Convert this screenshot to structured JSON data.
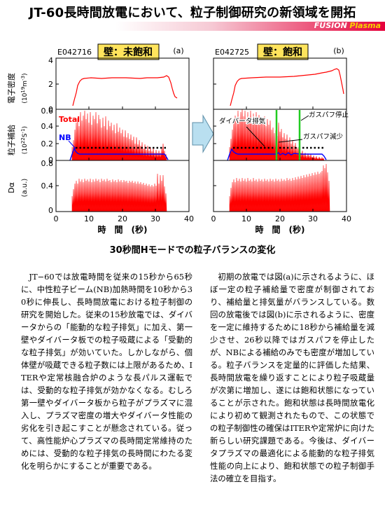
{
  "header": {
    "title": "JT-60長時間放電において、粒子制御研究の新領域を開拓",
    "band_word1": "FUSION",
    "band_word2": "Plasma"
  },
  "figure": {
    "left_panel": {
      "shot": "E042716",
      "wall_label": "壁：未飽和",
      "panel_tag": "(a)"
    },
    "right_panel": {
      "shot": "E042725",
      "wall_label": "壁：飽和",
      "panel_tag": "(b)"
    },
    "y_labels": {
      "density_1": "電子密度",
      "density_2": "(10",
      "density_exp": "19",
      "density_3": "m",
      "density_exp2": "-3",
      "density_4": ")",
      "supply_1": "粒子補給",
      "supply_2": "(10",
      "supply_exp": "22",
      "supply_3": "S",
      "supply_exp2": "-1",
      "supply_4": ")",
      "dalpha_1": "Dα",
      "dalpha_2": "(a.u.)"
    },
    "x_axis_label": "時　間　(秒)",
    "density_ticks": [
      "0",
      "2",
      "4"
    ],
    "supply_ticks": [
      "0",
      "0.2",
      "0.4",
      "0.6"
    ],
    "dalpha_ticks": [
      "0",
      "0.4",
      "0.8"
    ],
    "time_ticks": [
      "0",
      "10",
      "20",
      "30",
      "40"
    ],
    "annotations": {
      "total": "Total",
      "nb": "NB",
      "divertor_exhaust": "ダイバータ排気",
      "gaspuff_stop": "ガスパフ停止",
      "gaspuff_reduce": "ガスパフ減少"
    },
    "colors": {
      "trace_red": "#ff0000",
      "trace_blue": "#0000ff",
      "marker_green": "#22cc22",
      "label_box": "#ffe45c",
      "arrow_fill": "#b9dff0"
    }
  },
  "chart_data": [
    {
      "type": "line",
      "panel": "a",
      "ylabel": "電子密度 (10^19 m^-3)",
      "xlabel": "時間 (秒)",
      "xlim": [
        0,
        40
      ],
      "ylim": [
        0,
        4
      ],
      "series": [
        {
          "x": [
            5,
            6,
            7,
            9,
            12,
            20,
            30,
            33,
            34,
            35
          ],
          "y": [
            0.5,
            1.0,
            1.8,
            2.3,
            2.4,
            2.4,
            2.45,
            2.4,
            1.7,
            0.8
          ]
        }
      ]
    },
    {
      "type": "line",
      "panel": "b",
      "ylabel": "電子密度 (10^19 m^-3)",
      "xlabel": "時間 (秒)",
      "xlim": [
        0,
        40
      ],
      "ylim": [
        0,
        4
      ],
      "series": [
        {
          "x": [
            5,
            6,
            7,
            9,
            12,
            20,
            26,
            30,
            34,
            36,
            37
          ],
          "y": [
            0.5,
            1.0,
            1.8,
            2.3,
            2.4,
            2.5,
            2.7,
            2.9,
            3.3,
            3.2,
            1.8
          ]
        }
      ]
    },
    {
      "type": "line",
      "panel": "a",
      "ylabel": "粒子補給 (10^22 S^-1)",
      "xlim": [
        0,
        40
      ],
      "ylim": [
        0,
        0.6
      ],
      "series": [
        {
          "name": "Total",
          "x": [
            5,
            8,
            15,
            24,
            28,
            30,
            32
          ],
          "y": [
            0.2,
            0.45,
            0.4,
            0.3,
            0.2,
            0.3,
            0.15
          ]
        },
        {
          "name": "NB",
          "x": [
            5,
            7,
            9,
            10,
            32,
            33
          ],
          "y": [
            0.12,
            0.05,
            0.05,
            0.03,
            0.03,
            0.0
          ]
        }
      ]
    },
    {
      "type": "line",
      "panel": "b",
      "ylabel": "粒子補給 (10^22 S^-1)",
      "xlim": [
        0,
        40
      ],
      "ylim": [
        0,
        0.6
      ],
      "series": [
        {
          "name": "Total",
          "x": [
            5,
            8,
            15,
            18,
            24,
            26,
            30,
            33
          ],
          "y": [
            0.2,
            0.5,
            0.4,
            0.25,
            0.2,
            0.1,
            0.15,
            0.05
          ]
        },
        {
          "name": "NB",
          "x": [
            5,
            7,
            10,
            33,
            34
          ],
          "y": [
            0.12,
            0.05,
            0.03,
            0.03,
            0.0
          ]
        }
      ]
    },
    {
      "type": "area",
      "panel": "a",
      "ylabel": "Dα (a.u.)",
      "xlim": [
        0,
        40
      ],
      "ylim": [
        0,
        0.8
      ],
      "series": [
        {
          "x": [
            5,
            8,
            15,
            28,
            30,
            32,
            33
          ],
          "y": [
            0.2,
            0.55,
            0.55,
            0.5,
            0.45,
            0.5,
            0.3
          ]
        }
      ]
    },
    {
      "type": "area",
      "panel": "b",
      "ylabel": "Dα (a.u.)",
      "xlim": [
        0,
        40
      ],
      "ylim": [
        0,
        0.8
      ],
      "series": [
        {
          "x": [
            5,
            8,
            15,
            25,
            30,
            33,
            34,
            36
          ],
          "y": [
            0.2,
            0.55,
            0.55,
            0.55,
            0.6,
            0.6,
            0.65,
            0.2
          ]
        }
      ]
    }
  ],
  "caption": "30秒間Hモードでの粒子バランスの変化",
  "body": {
    "left": "JT−60では放電時間を従来の15秒から65秒に、中性粒子ビーム(NB)加熱時間を10秒から30秒に伸長し、長時間放電における粒子制御の研究を開始した。従来の15秒放電では、ダイバータからの「能動的な粒子排気」に加え、第一壁やダイバータ板での粒子吸蔵による「受動的な粒子排気」が効いていた。しかしながら、個体壁が吸蔵できる粒子数には上限があるため、ITERや定常核融合炉のような長パルス運転では、受動的な粒子排気が効かなくなる。むしろ第一壁やダイバータ板から粒子がプラズマに混入し、プラズマ密度の増大やダイバータ性能の劣化を引き起こすことが懸念されている。従って、高性能炉心プラズマの長時間定常維持のためには、受動的な粒子排気の長時間にわたる変化を明らかにすることが重要である。",
    "right": "初期の放電では図(a)に示されるように、ほぼ一定の粒子補給量で密度が制御されており、補給量と排気量がバランスしている。数回の放電後では図(b)に示されるように、密度を一定に維持するために18秒から補給量を減少させ、26秒以降ではガスパフを停止したが、NBによる補給のみでも密度が増加している。粒子バランスを定量的に評価した結果、長時間放電を繰り返すことにより粒子吸蔵量が次第に増加し、遂には飽和状態になっていることが示された。飽和状態は長時間放電化により初めて観測されたもので、この状態での粒子制御性の確保はITERや定常炉に向けた新らしい研究課題である。今後は、ダイバータプラズマの最適化による能動的な粒子排気性能の向上により、飽和状態での粒子制御手法の確立を目指す。"
  }
}
